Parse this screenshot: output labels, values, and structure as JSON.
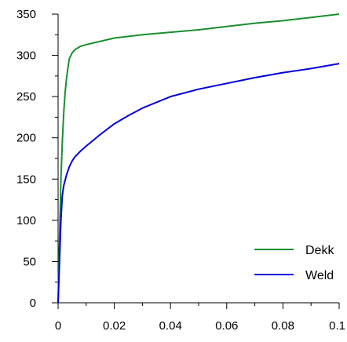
{
  "chart_data": {
    "type": "line",
    "title": "",
    "xlabel": "",
    "ylabel": "",
    "xlim": [
      0,
      0.1
    ],
    "ylim": [
      0,
      350
    ],
    "xticks": [
      0,
      0.02,
      0.04,
      0.06,
      0.08,
      0.1
    ],
    "xtick_labels": [
      "0",
      "0.02",
      "0.04",
      "0.06",
      "0.08",
      "0.1"
    ],
    "yticks": [
      0,
      50,
      100,
      150,
      200,
      250,
      300,
      350
    ],
    "ytick_labels": [
      "0",
      "50",
      "100",
      "150",
      "200",
      "250",
      "300",
      "350"
    ],
    "grid": false,
    "legend_position": "bottom-right",
    "series": [
      {
        "name": "Dekk",
        "color": "#1a8f2e",
        "x": [
          0,
          0.0005,
          0.001,
          0.0015,
          0.002,
          0.0025,
          0.003,
          0.0035,
          0.004,
          0.005,
          0.006,
          0.008,
          0.01,
          0.015,
          0.02,
          0.025,
          0.03,
          0.04,
          0.05,
          0.06,
          0.07,
          0.08,
          0.09,
          0.1
        ],
        "y": [
          0,
          75,
          150,
          195,
          230,
          255,
          272,
          285,
          296,
          303,
          307,
          311,
          313,
          317,
          321,
          323,
          325,
          328,
          331,
          335,
          339,
          342,
          346,
          350
        ]
      },
      {
        "name": "Weld",
        "color": "#0000e0",
        "x": [
          0,
          0.0005,
          0.001,
          0.0015,
          0.002,
          0.003,
          0.004,
          0.005,
          0.006,
          0.008,
          0.01,
          0.015,
          0.02,
          0.025,
          0.03,
          0.04,
          0.05,
          0.06,
          0.07,
          0.08,
          0.09,
          0.1
        ],
        "y": [
          0,
          50,
          100,
          130,
          142,
          155,
          165,
          172,
          177,
          184,
          190,
          204,
          217,
          227,
          236,
          250,
          259,
          266,
          273,
          279,
          284,
          290
        ]
      }
    ]
  }
}
